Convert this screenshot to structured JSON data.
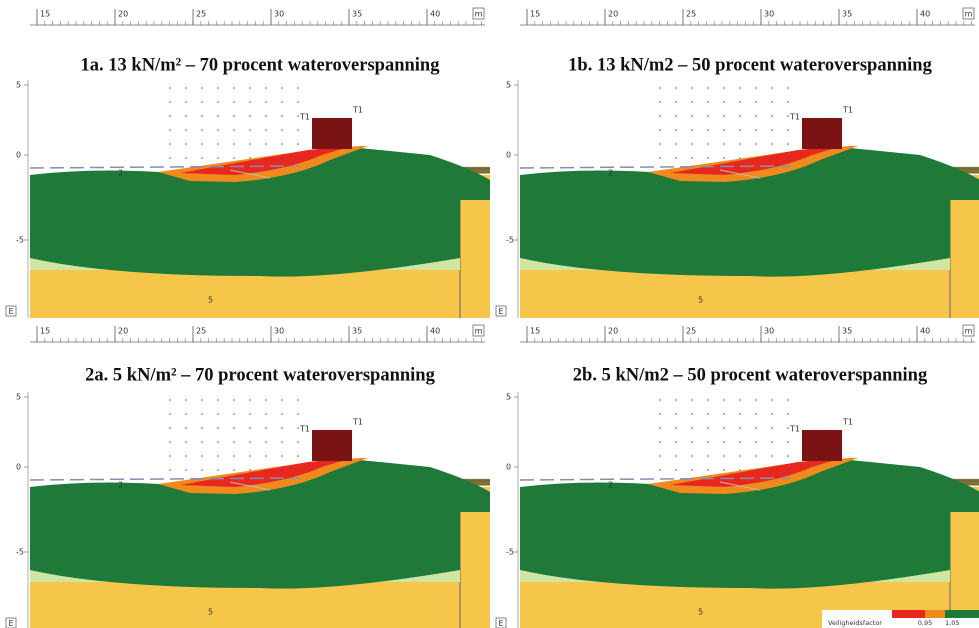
{
  "rulers": [
    {
      "ticks": [
        "15",
        "20",
        "25",
        "30",
        "35",
        "40"
      ],
      "unit": "m"
    },
    {
      "ticks": [
        "15",
        "20",
        "25",
        "30",
        "35",
        "40"
      ],
      "unit": "m"
    },
    {
      "ticks": [
        "15",
        "20",
        "25",
        "30",
        "35",
        "40"
      ],
      "unit": "m"
    },
    {
      "ticks": [
        "15",
        "20",
        "25",
        "30",
        "35",
        "40"
      ],
      "unit": "m"
    }
  ],
  "panels": [
    {
      "title": "1a. 13 kN/m² – 70 procent wateroverspanning",
      "y_labels": [
        "5",
        "0",
        "-5"
      ],
      "labels": {
        "point": "T1",
        "load": "T1",
        "layer_a": "2",
        "layer_b": "5",
        "marker": "E"
      }
    },
    {
      "title": "1b. 13 kN/m2 – 50 procent wateroverspanning",
      "y_labels": [
        "5",
        "0",
        "-5"
      ],
      "labels": {
        "point": "T1",
        "load": "T1",
        "layer_a": "2",
        "layer_b": "5",
        "marker": "E"
      }
    },
    {
      "title": "2a. 5 kN/m² – 70 procent wateroverspanning",
      "y_labels": [
        "5",
        "0",
        "-5"
      ],
      "labels": {
        "point": "T1",
        "load": "T1",
        "layer_a": "2",
        "layer_b": "5",
        "marker": "E"
      }
    },
    {
      "title": "2b. 5 kN/m2 – 50 procent wateroverspanning",
      "y_labels": [
        "5",
        "0",
        "-5"
      ],
      "labels": {
        "point": "T1",
        "load": "T1",
        "layer_a": "2",
        "layer_b": "5",
        "marker": "E"
      }
    }
  ],
  "legend": {
    "title": "Veiligheidsfactor",
    "ticks": [
      "0,95",
      "1,05"
    ]
  }
}
